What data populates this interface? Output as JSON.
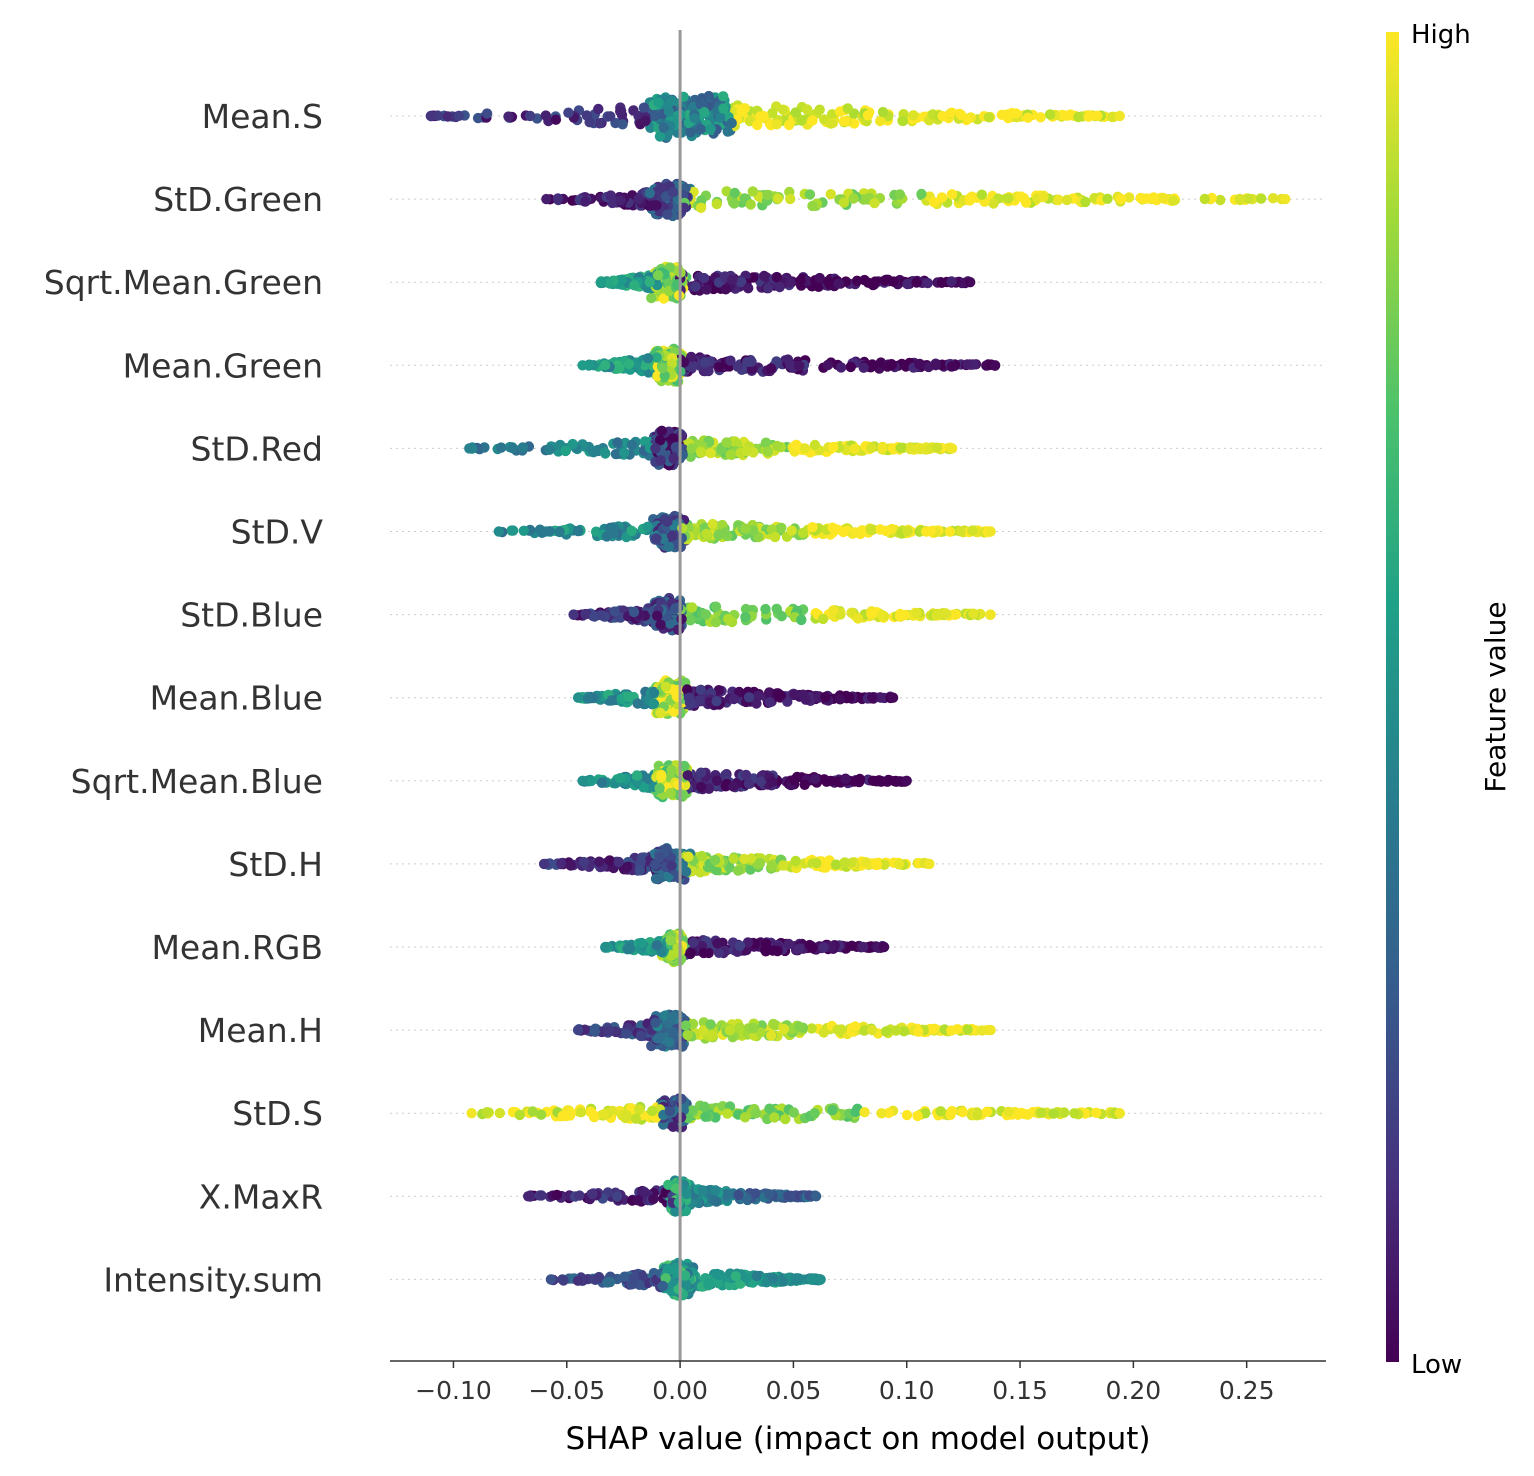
{
  "chart_data": {
    "type": "scatter",
    "subtype": "shap-beeswarm",
    "xlabel": "SHAP value (impact on model output)",
    "xlim": [
      -0.128,
      0.285
    ],
    "x_ticks": [
      -0.1,
      -0.05,
      0.0,
      0.05,
      0.1,
      0.15,
      0.2,
      0.25
    ],
    "x_tick_labels": [
      "−0.10",
      "−0.05",
      "0.00",
      "0.05",
      "0.10",
      "0.15",
      "0.20",
      "0.25"
    ],
    "zero_line": true,
    "colormap": "viridis",
    "colorbar": {
      "title": "Feature value",
      "high_label": "High",
      "low_label": "Low",
      "high_color": "#fde725",
      "low_color": "#440154"
    },
    "features": [
      {
        "name": "Mean.S",
        "min": -0.11,
        "max": 0.194,
        "dense_left": -0.012,
        "dense_right": 0.022,
        "width": 22,
        "skew": 1,
        "left_color": 0.15,
        "mid_color": 0.45,
        "right_color": 0.97,
        "tail_color": 0.98
      },
      {
        "name": "StD.Green",
        "min": -0.059,
        "max": 0.267,
        "dense_left": -0.01,
        "dense_right": 0.002,
        "width": 18,
        "skew": 1,
        "left_color": 0.08,
        "mid_color": 0.28,
        "right_color": 0.85,
        "tail_color": 0.98
      },
      {
        "name": "Sqrt.Mean.Green",
        "min": -0.035,
        "max": 0.128,
        "dense_left": -0.01,
        "dense_right": 0.0,
        "width": 18,
        "skew": -1,
        "left_color": 0.55,
        "mid_color": 0.85,
        "right_color": 0.08,
        "tail_color": 0.02
      },
      {
        "name": "Mean.Green",
        "min": -0.043,
        "max": 0.139,
        "dense_left": -0.01,
        "dense_right": 0.0,
        "width": 18,
        "skew": -1,
        "left_color": 0.55,
        "mid_color": 0.85,
        "right_color": 0.08,
        "tail_color": 0.02
      },
      {
        "name": "StD.Red",
        "min": -0.093,
        "max": 0.12,
        "dense_left": -0.01,
        "dense_right": 0.0,
        "width": 18,
        "skew": 1,
        "left_color": 0.45,
        "mid_color": 0.15,
        "right_color": 0.85,
        "tail_color": 0.98
      },
      {
        "name": "StD.V",
        "min": -0.08,
        "max": 0.137,
        "dense_left": -0.01,
        "dense_right": 0.0,
        "width": 17,
        "skew": 1,
        "left_color": 0.48,
        "mid_color": 0.25,
        "right_color": 0.85,
        "tail_color": 0.98
      },
      {
        "name": "StD.Blue",
        "min": -0.047,
        "max": 0.137,
        "dense_left": -0.01,
        "dense_right": 0.0,
        "width": 18,
        "skew": 1,
        "left_color": 0.15,
        "mid_color": 0.2,
        "right_color": 0.8,
        "tail_color": 0.98
      },
      {
        "name": "Mean.Blue",
        "min": -0.045,
        "max": 0.094,
        "dense_left": -0.01,
        "dense_right": 0.002,
        "width": 18,
        "skew": -1,
        "left_color": 0.5,
        "mid_color": 0.9,
        "right_color": 0.1,
        "tail_color": 0.02
      },
      {
        "name": "Sqrt.Mean.Blue",
        "min": -0.043,
        "max": 0.1,
        "dense_left": -0.01,
        "dense_right": 0.002,
        "width": 18,
        "skew": -1,
        "left_color": 0.5,
        "mid_color": 0.85,
        "right_color": 0.1,
        "tail_color": 0.02
      },
      {
        "name": "StD.H",
        "min": -0.06,
        "max": 0.11,
        "dense_left": -0.01,
        "dense_right": 0.002,
        "width": 18,
        "skew": 1,
        "left_color": 0.15,
        "mid_color": 0.3,
        "right_color": 0.85,
        "tail_color": 0.98
      },
      {
        "name": "Mean.RGB",
        "min": -0.033,
        "max": 0.09,
        "dense_left": -0.005,
        "dense_right": 0.0,
        "width": 16,
        "skew": -1,
        "left_color": 0.5,
        "mid_color": 0.85,
        "right_color": 0.1,
        "tail_color": 0.02
      },
      {
        "name": "Mean.H",
        "min": -0.045,
        "max": 0.137,
        "dense_left": -0.01,
        "dense_right": 0.002,
        "width": 18,
        "skew": 1,
        "left_color": 0.2,
        "mid_color": 0.3,
        "right_color": 0.88,
        "tail_color": 0.98
      },
      {
        "name": "StD.S",
        "min": -0.092,
        "max": 0.194,
        "dense_left": -0.007,
        "dense_right": 0.002,
        "width": 16,
        "skew": 1,
        "left_color": 0.98,
        "mid_color": 0.25,
        "right_color": 0.8,
        "tail_color": 0.98
      },
      {
        "name": "X.MaxR",
        "min": -0.067,
        "max": 0.06,
        "dense_left": -0.003,
        "dense_right": 0.002,
        "width": 16,
        "skew": 0,
        "left_color": 0.1,
        "mid_color": 0.6,
        "right_color": 0.45,
        "tail_color": 0.3
      },
      {
        "name": "Intensity.sum",
        "min": -0.057,
        "max": 0.062,
        "dense_left": -0.006,
        "dense_right": 0.004,
        "width": 18,
        "skew": 0,
        "left_color": 0.25,
        "mid_color": 0.55,
        "right_color": 0.55,
        "tail_color": 0.5
      }
    ]
  }
}
